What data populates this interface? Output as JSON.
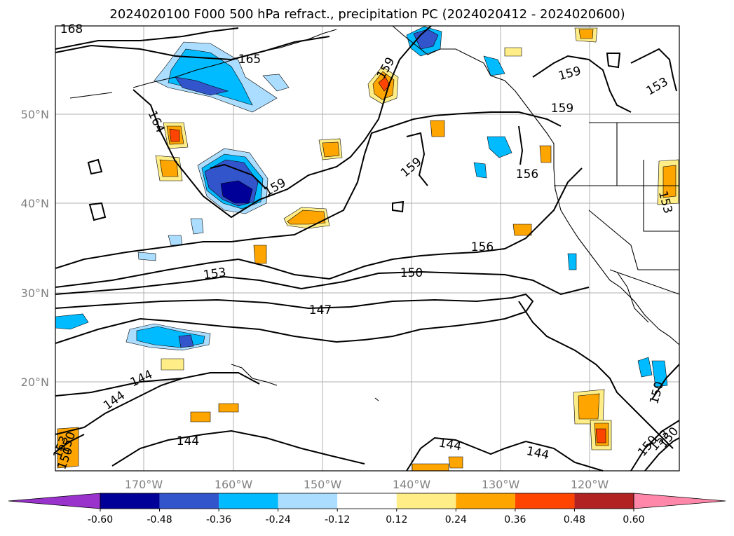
{
  "title": "2024020100 F000 500 hPa refract., precipitation PC (2024020412 - 2024020600)",
  "lat_labels": [
    "50°N",
    "40°N",
    "30°N",
    "20°N"
  ],
  "lon_labels": [
    "170°W",
    "160°W",
    "150°W",
    "140°W",
    "130°W",
    "120°W"
  ],
  "contour_labels": [
    "168",
    "165",
    "164",
    "159",
    "159",
    "159",
    "159",
    "159",
    "153",
    "156",
    "156",
    "153",
    "153",
    "150",
    "147",
    "144",
    "144",
    "144",
    "144",
    "144",
    "150",
    "150",
    "153",
    "150",
    "153",
    "150",
    "150"
  ],
  "colorbar": {
    "tick_labels": [
      "-0.60",
      "-0.48",
      "-0.36",
      "-0.24",
      "-0.12",
      "0.12",
      "0.24",
      "0.36",
      "0.48",
      "0.60"
    ],
    "colors": [
      "#9933cc",
      "#000099",
      "#3355cc",
      "#00bbff",
      "#aaddff",
      "#ffffff",
      "#ffee88",
      "#ffa500",
      "#ff4400",
      "#b22222",
      "#ff88aa"
    ]
  }
}
